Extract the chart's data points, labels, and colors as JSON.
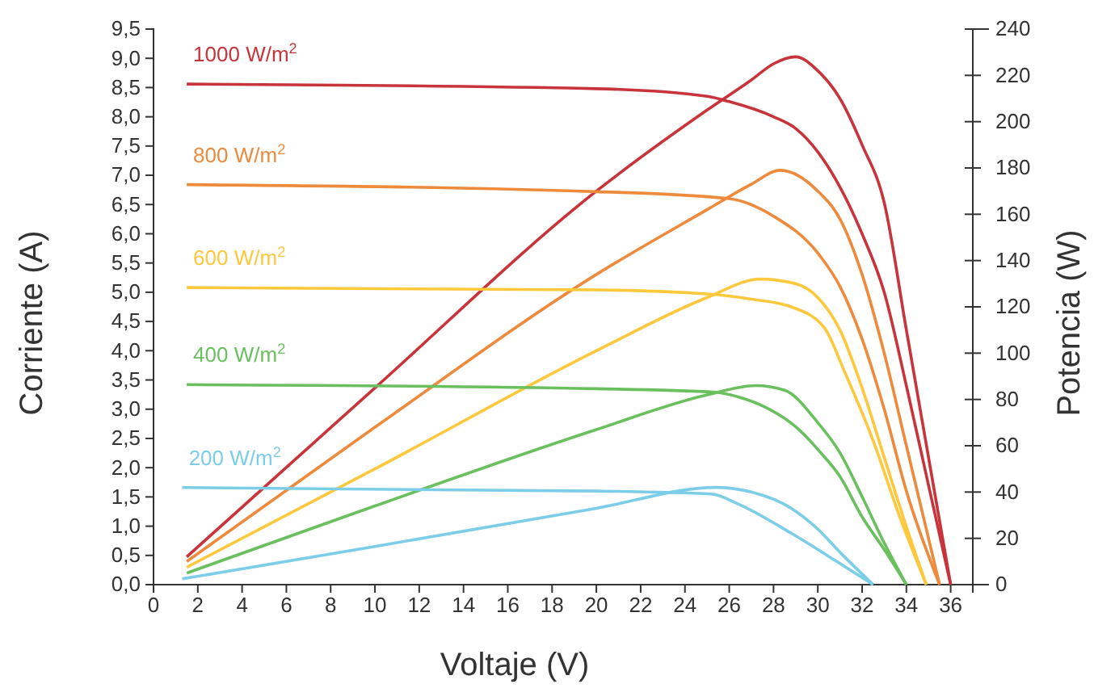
{
  "chart_data": {
    "type": "line",
    "xlabel": "Voltaje (V)",
    "ylabel": "Corriente (A)",
    "y2label": "Potencia (W)",
    "xlim": [
      0,
      37
    ],
    "xticks": [
      0,
      2,
      4,
      6,
      8,
      10,
      12,
      14,
      16,
      18,
      20,
      22,
      24,
      26,
      28,
      30,
      32,
      34,
      36
    ],
    "ylim": [
      0,
      9.5
    ],
    "yticks": [
      {
        "value": 0,
        "label": "0,0"
      },
      {
        "value": 0.5,
        "label": "0,5"
      },
      {
        "value": 1,
        "label": "1,0"
      },
      {
        "value": 1.5,
        "label": "1,5"
      },
      {
        "value": 2,
        "label": "2,0"
      },
      {
        "value": 2.5,
        "label": "2,5"
      },
      {
        "value": 3,
        "label": "3,0"
      },
      {
        "value": 3.5,
        "label": "3,5"
      },
      {
        "value": 4,
        "label": "4,0"
      },
      {
        "value": 4.5,
        "label": "4,5"
      },
      {
        "value": 5,
        "label": "5,0"
      },
      {
        "value": 5.5,
        "label": "5,5"
      },
      {
        "value": 6,
        "label": "6,0"
      },
      {
        "value": 6.5,
        "label": "6,5"
      },
      {
        "value": 7,
        "label": "7,0"
      },
      {
        "value": 7.5,
        "label": "7,5"
      },
      {
        "value": 8,
        "label": "8,0"
      },
      {
        "value": 8.5,
        "label": "8,5"
      },
      {
        "value": 9,
        "label": "9,0"
      },
      {
        "value": 9.5,
        "label": "9,5"
      }
    ],
    "y2lim": [
      0,
      240
    ],
    "y2ticks": [
      0,
      20,
      40,
      60,
      80,
      100,
      120,
      140,
      160,
      180,
      200,
      220,
      240
    ],
    "legend": false,
    "grid": false,
    "marker": "none",
    "line_style": "solid",
    "series": [
      {
        "name": "1000 W/m$^{2}$",
        "color": "#c7343c",
        "x": [
          1.5,
          20,
          25,
          26,
          28,
          29,
          30,
          31,
          32,
          33,
          34,
          35,
          36
        ],
        "values": [
          8.56,
          8.48,
          8.35,
          8.26,
          8.0,
          7.8,
          7.4,
          6.8,
          6.0,
          5.0,
          3.4,
          1.7,
          0
        ]
      },
      {
        "color": "#c7343c",
        "axis": "y2",
        "x": [
          1.5,
          10,
          20,
          25,
          27,
          28,
          29,
          30,
          31,
          32,
          33,
          34,
          35,
          36
        ],
        "values": [
          12,
          85,
          170,
          205,
          218,
          225,
          228,
          222,
          210,
          190,
          165,
          110,
          55,
          0
        ]
      },
      {
        "name": "800 W/m$^{2}$",
        "color": "#ee8a3c",
        "x": [
          1.5,
          20,
          26,
          28,
          30,
          31,
          32,
          33,
          34,
          35.5
        ],
        "values": [
          6.84,
          6.72,
          6.6,
          6.3,
          5.67,
          5.1,
          4.2,
          3.0,
          1.6,
          0
        ]
      },
      {
        "color": "#ee8a3c",
        "axis": "y2",
        "x": [
          1.5,
          10,
          20,
          25,
          27,
          28.3,
          30,
          31,
          32,
          33,
          34,
          35,
          35.5
        ],
        "values": [
          10,
          68,
          134,
          162,
          173,
          179,
          170,
          158,
          134,
          100,
          60,
          20,
          0
        ]
      },
      {
        "name": "600 W/m$^{2}$",
        "color": "#fdc83c",
        "x": [
          1.5,
          20,
          25,
          27,
          28.8,
          30.3,
          31.2,
          32.5,
          33.7,
          34.9
        ],
        "values": [
          5.08,
          5.04,
          4.97,
          4.88,
          4.75,
          4.39,
          3.65,
          2.46,
          1.16,
          0
        ]
      },
      {
        "color": "#fdc83c",
        "axis": "y2",
        "x": [
          1.5,
          10,
          20,
          25,
          27.4,
          29,
          30,
          31,
          32,
          33,
          34,
          34.9
        ],
        "values": [
          7.5,
          50,
          101,
          124,
          132,
          130,
          124,
          110,
          85,
          55,
          25,
          0
        ]
      },
      {
        "name": "400 W/m$^{2}$",
        "color": "#6abf5e",
        "x": [
          1.5,
          20,
          25.4,
          26.5,
          27.6,
          29,
          30.1,
          31,
          32,
          33,
          34
        ],
        "values": [
          3.42,
          3.35,
          3.29,
          3.2,
          3.04,
          2.7,
          2.27,
          1.85,
          1.16,
          0.6,
          0
        ]
      },
      {
        "color": "#6abf5e",
        "axis": "y2",
        "x": [
          1.5,
          10,
          20,
          25,
          27.2,
          28.5,
          30,
          31,
          32,
          33,
          34
        ],
        "values": [
          5,
          34,
          67,
          82,
          86,
          84,
          70,
          57,
          38,
          18,
          0
        ]
      },
      {
        "name": "200 W/m$^{2}$",
        "color": "#7ccde8",
        "x": [
          1.3,
          20,
          25.2,
          26.4,
          28.8,
          30.8,
          32.5
        ],
        "values": [
          1.66,
          1.6,
          1.55,
          1.38,
          0.88,
          0.41,
          0
        ]
      },
      {
        "color": "#7ccde8",
        "axis": "y2",
        "x": [
          1.3,
          10,
          20,
          25.4,
          27,
          28.8,
          30,
          31,
          32.5
        ],
        "values": [
          2.5,
          16.5,
          33,
          42,
          40,
          33,
          24,
          14,
          0
        ]
      }
    ]
  }
}
